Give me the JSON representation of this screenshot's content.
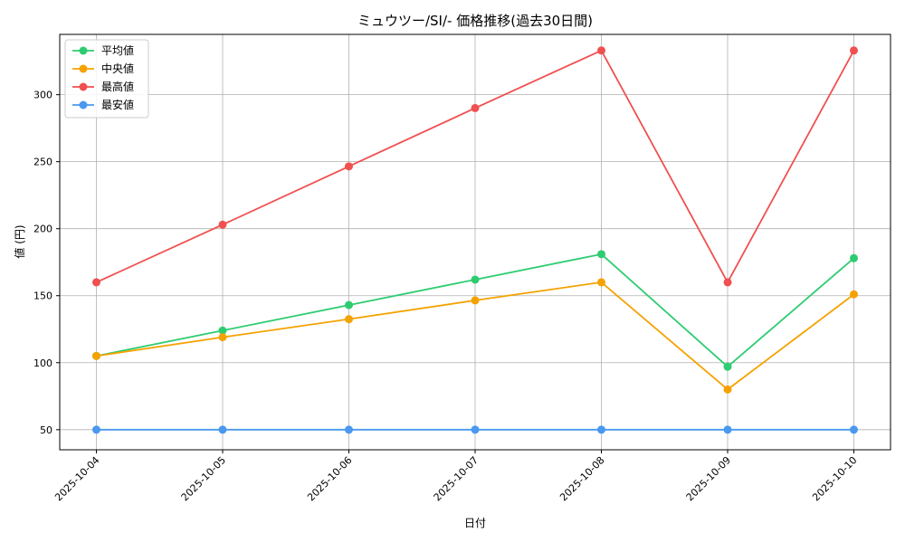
{
  "chart_data": {
    "type": "line",
    "title": "ミュウツー/SI/- 価格推移(過去30日間)",
    "xlabel": "日付",
    "ylabel": "値 (円)",
    "categories": [
      "2025-10-04",
      "2025-10-05",
      "2025-10-06",
      "2025-10-07",
      "2025-10-08",
      "2025-10-09",
      "2025-10-10"
    ],
    "ylim": [
      35,
      345
    ],
    "yticks": [
      50,
      100,
      150,
      200,
      250,
      300
    ],
    "grid": true,
    "legend_position": "top-left",
    "series": [
      {
        "name": "平均値",
        "color": "#2ecc71",
        "values": [
          105,
          124,
          143,
          162,
          181,
          97,
          178
        ]
      },
      {
        "name": "中央値",
        "color": "#f5a200",
        "values": [
          105,
          119,
          132.5,
          146.5,
          160,
          80,
          151
        ]
      },
      {
        "name": "最高値",
        "color": "#f05050",
        "values": [
          160,
          203,
          246.5,
          290,
          333,
          160,
          333
        ]
      },
      {
        "name": "最安値",
        "color": "#4a98f0",
        "values": [
          50,
          50,
          50,
          50,
          50,
          50,
          50
        ]
      }
    ]
  }
}
